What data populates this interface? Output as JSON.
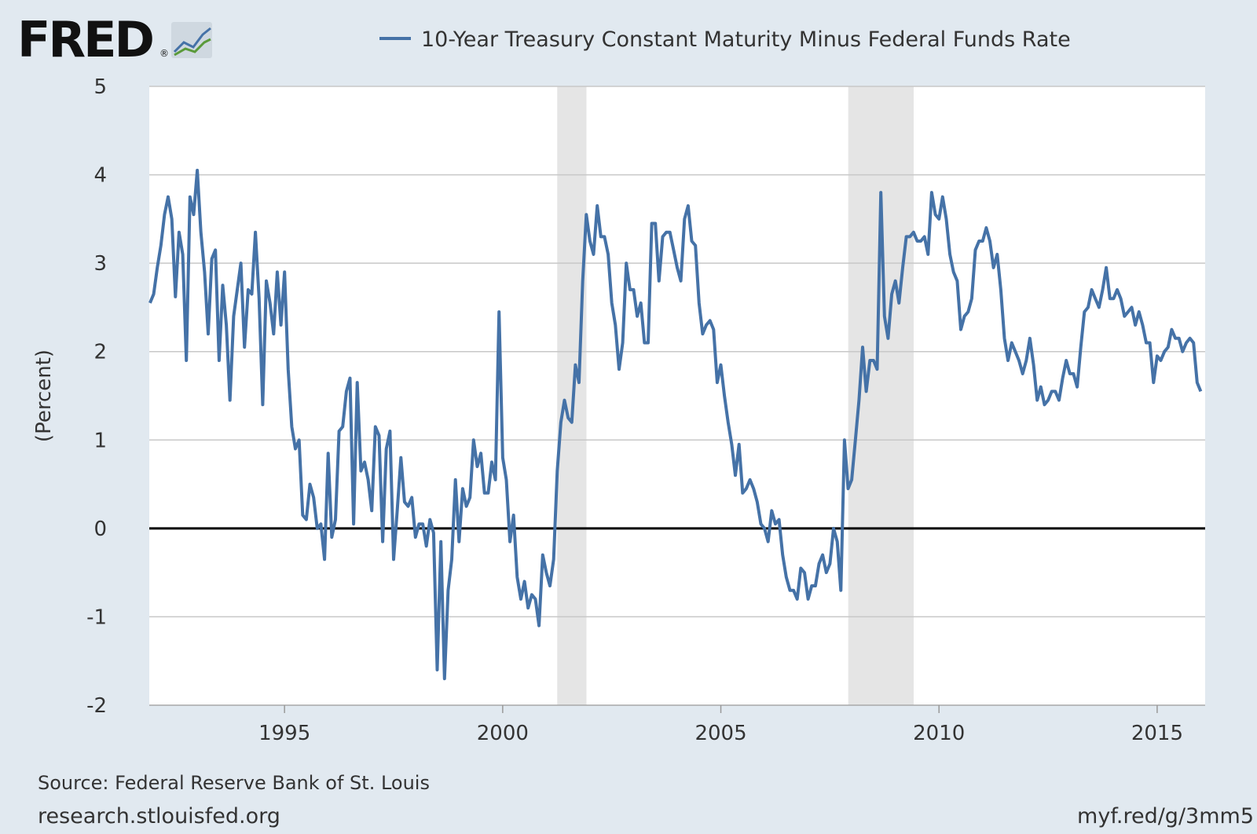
{
  "logo": {
    "text": "FRED",
    "mark": "®",
    "icon": "fred-chart-icon"
  },
  "footer": {
    "source": "Source: Federal Reserve Bank of St. Louis",
    "site": "research.stlouisfed.org",
    "short_url": "myf.red/g/3mm5"
  },
  "colors": {
    "background": "#e1e9f0",
    "plot_background": "#ffffff",
    "series": "#4572a7",
    "recession": "#e5e5e5",
    "grid": "#c8c8c8",
    "zero_line": "#000000"
  },
  "chart_data": {
    "type": "line",
    "title": "",
    "xlabel": "",
    "ylabel": "(Percent)",
    "xlim": [
      1991.9,
      2016.1
    ],
    "ylim": [
      -2,
      5
    ],
    "y_ticks": [
      -2,
      -1,
      0,
      1,
      2,
      3,
      4,
      5
    ],
    "x_ticks": [
      1995,
      2000,
      2005,
      2010,
      2015
    ],
    "grid": "horizontal",
    "legend": "top",
    "zero_line": true,
    "recessions": [
      [
        2001.25,
        2001.92
      ],
      [
        2007.92,
        2009.42
      ]
    ],
    "series": [
      {
        "name": "10-Year Treasury Constant Maturity Minus Federal Funds Rate",
        "x": [
          1991.917,
          1992.0,
          1992.083,
          1992.167,
          1992.25,
          1992.333,
          1992.417,
          1992.5,
          1992.583,
          1992.667,
          1992.75,
          1992.833,
          1992.917,
          1993.0,
          1993.083,
          1993.167,
          1993.25,
          1993.333,
          1993.417,
          1993.5,
          1993.583,
          1993.667,
          1993.75,
          1993.833,
          1993.917,
          1994.0,
          1994.083,
          1994.167,
          1994.25,
          1994.333,
          1994.417,
          1994.5,
          1994.583,
          1994.667,
          1994.75,
          1994.833,
          1994.917,
          1995.0,
          1995.083,
          1995.167,
          1995.25,
          1995.333,
          1995.417,
          1995.5,
          1995.583,
          1995.667,
          1995.75,
          1995.833,
          1995.917,
          1996.0,
          1996.083,
          1996.167,
          1996.25,
          1996.333,
          1996.417,
          1996.5,
          1996.583,
          1996.667,
          1996.75,
          1996.833,
          1996.917,
          1997.0,
          1997.083,
          1997.167,
          1997.25,
          1997.333,
          1997.417,
          1997.5,
          1997.583,
          1997.667,
          1997.75,
          1997.833,
          1997.917,
          1998.0,
          1998.083,
          1998.167,
          1998.25,
          1998.333,
          1998.417,
          1998.5,
          1998.583,
          1998.667,
          1998.75,
          1998.833,
          1998.917,
          1999.0,
          1999.083,
          1999.167,
          1999.25,
          1999.333,
          1999.417,
          1999.5,
          1999.583,
          1999.667,
          1999.75,
          1999.833,
          1999.917,
          2000.0,
          2000.083,
          2000.167,
          2000.25,
          2000.333,
          2000.417,
          2000.5,
          2000.583,
          2000.667,
          2000.75,
          2000.833,
          2000.917,
          2001.0,
          2001.083,
          2001.167,
          2001.25,
          2001.333,
          2001.417,
          2001.5,
          2001.583,
          2001.667,
          2001.75,
          2001.833,
          2001.917,
          2002.0,
          2002.083,
          2002.167,
          2002.25,
          2002.333,
          2002.417,
          2002.5,
          2002.583,
          2002.667,
          2002.75,
          2002.833,
          2002.917,
          2003.0,
          2003.083,
          2003.167,
          2003.25,
          2003.333,
          2003.417,
          2003.5,
          2003.583,
          2003.667,
          2003.75,
          2003.833,
          2003.917,
          2004.0,
          2004.083,
          2004.167,
          2004.25,
          2004.333,
          2004.417,
          2004.5,
          2004.583,
          2004.667,
          2004.75,
          2004.833,
          2004.917,
          2005.0,
          2005.083,
          2005.167,
          2005.25,
          2005.333,
          2005.417,
          2005.5,
          2005.583,
          2005.667,
          2005.75,
          2005.833,
          2005.917,
          2006.0,
          2006.083,
          2006.167,
          2006.25,
          2006.333,
          2006.417,
          2006.5,
          2006.583,
          2006.667,
          2006.75,
          2006.833,
          2006.917,
          2007.0,
          2007.083,
          2007.167,
          2007.25,
          2007.333,
          2007.417,
          2007.5,
          2007.583,
          2007.667,
          2007.75,
          2007.833,
          2007.917,
          2008.0,
          2008.083,
          2008.167,
          2008.25,
          2008.333,
          2008.417,
          2008.5,
          2008.583,
          2008.667,
          2008.75,
          2008.833,
          2008.917,
          2009.0,
          2009.083,
          2009.167,
          2009.25,
          2009.333,
          2009.417,
          2009.5,
          2009.583,
          2009.667,
          2009.75,
          2009.833,
          2009.917,
          2010.0,
          2010.083,
          2010.167,
          2010.25,
          2010.333,
          2010.417,
          2010.5,
          2010.583,
          2010.667,
          2010.75,
          2010.833,
          2010.917,
          2011.0,
          2011.083,
          2011.167,
          2011.25,
          2011.333,
          2011.417,
          2011.5,
          2011.583,
          2011.667,
          2011.75,
          2011.833,
          2011.917,
          2012.0,
          2012.083,
          2012.167,
          2012.25,
          2012.333,
          2012.417,
          2012.5,
          2012.583,
          2012.667,
          2012.75,
          2012.833,
          2012.917,
          2013.0,
          2013.083,
          2013.167,
          2013.25,
          2013.333,
          2013.417,
          2013.5,
          2013.583,
          2013.667,
          2013.75,
          2013.833,
          2013.917,
          2014.0,
          2014.083,
          2014.167,
          2014.25,
          2014.333,
          2014.417,
          2014.5,
          2014.583,
          2014.667,
          2014.75,
          2014.833,
          2014.917,
          2015.0,
          2015.083,
          2015.167,
          2015.25,
          2015.333,
          2015.417,
          2015.5,
          2015.583,
          2015.667,
          2015.75,
          2015.833,
          2015.917,
          2016.0
        ],
        "values": [
          2.55,
          2.65,
          2.95,
          3.2,
          3.55,
          3.75,
          3.5,
          2.62,
          3.35,
          3.1,
          1.9,
          3.75,
          3.55,
          4.05,
          3.35,
          2.9,
          2.2,
          3.05,
          3.15,
          1.9,
          2.75,
          2.3,
          1.45,
          2.4,
          2.7,
          3.0,
          2.05,
          2.7,
          2.65,
          3.35,
          2.6,
          1.4,
          2.8,
          2.55,
          2.2,
          2.9,
          2.3,
          2.9,
          1.8,
          1.15,
          0.9,
          1.0,
          0.15,
          0.1,
          0.5,
          0.35,
          0.0,
          0.05,
          -0.35,
          0.85,
          -0.1,
          0.1,
          1.1,
          1.15,
          1.55,
          1.7,
          0.05,
          1.65,
          0.65,
          0.75,
          0.55,
          0.2,
          1.15,
          1.05,
          -0.15,
          0.9,
          1.1,
          -0.35,
          0.2,
          0.8,
          0.3,
          0.25,
          0.35,
          -0.1,
          0.05,
          0.05,
          -0.2,
          0.1,
          -0.05,
          -1.6,
          -0.15,
          -1.7,
          -0.7,
          -0.35,
          0.55,
          -0.15,
          0.45,
          0.25,
          0.35,
          1.0,
          0.7,
          0.85,
          0.4,
          0.4,
          0.75,
          0.55,
          2.45,
          0.8,
          0.55,
          -0.15,
          0.15,
          -0.55,
          -0.8,
          -0.6,
          -0.9,
          -0.75,
          -0.8,
          -1.1,
          -0.3,
          -0.5,
          -0.65,
          -0.35,
          0.65,
          1.2,
          1.45,
          1.25,
          1.2,
          1.85,
          1.65,
          2.8,
          3.55,
          3.25,
          3.1,
          3.65,
          3.3,
          3.3,
          3.1,
          2.55,
          2.3,
          1.8,
          2.1,
          3.0,
          2.7,
          2.7,
          2.4,
          2.55,
          2.1,
          2.1,
          3.45,
          3.45,
          2.8,
          3.3,
          3.35,
          3.35,
          3.15,
          2.95,
          2.8,
          3.5,
          3.65,
          3.25,
          3.2,
          2.55,
          2.2,
          2.3,
          2.35,
          2.25,
          1.65,
          1.85,
          1.5,
          1.2,
          0.95,
          0.6,
          0.95,
          0.4,
          0.45,
          0.55,
          0.45,
          0.3,
          0.05,
          0.0,
          -0.15,
          0.2,
          0.05,
          0.1,
          -0.3,
          -0.55,
          -0.7,
          -0.7,
          -0.8,
          -0.45,
          -0.5,
          -0.8,
          -0.65,
          -0.65,
          -0.4,
          -0.3,
          -0.5,
          -0.4,
          0.0,
          -0.15,
          -0.7,
          1.0,
          0.45,
          0.55,
          1.0,
          1.45,
          2.05,
          1.55,
          1.9,
          1.9,
          1.8,
          3.8,
          2.4,
          2.15,
          2.65,
          2.8,
          2.55,
          2.95,
          3.3,
          3.3,
          3.35,
          3.25,
          3.25,
          3.3,
          3.1,
          3.8,
          3.55,
          3.5,
          3.75,
          3.5,
          3.1,
          2.9,
          2.8,
          2.25,
          2.4,
          2.45,
          2.6,
          3.15,
          3.25,
          3.25,
          3.4,
          3.25,
          2.95,
          3.1,
          2.7,
          2.15,
          1.9,
          2.1,
          2.0,
          1.9,
          1.75,
          1.9,
          2.15,
          1.85,
          1.45,
          1.6,
          1.4,
          1.45,
          1.55,
          1.55,
          1.45,
          1.7,
          1.9,
          1.75,
          1.75,
          1.6,
          2.05,
          2.45,
          2.5,
          2.7,
          2.6,
          2.5,
          2.7,
          2.95,
          2.6,
          2.6,
          2.7,
          2.6,
          2.4,
          2.45,
          2.5,
          2.3,
          2.45,
          2.3,
          2.1,
          2.1,
          1.65,
          1.95,
          1.9,
          2.0,
          2.05,
          2.25,
          2.15,
          2.15,
          2.0,
          2.1,
          2.15,
          2.1,
          1.65,
          1.55
        ]
      }
    ]
  }
}
